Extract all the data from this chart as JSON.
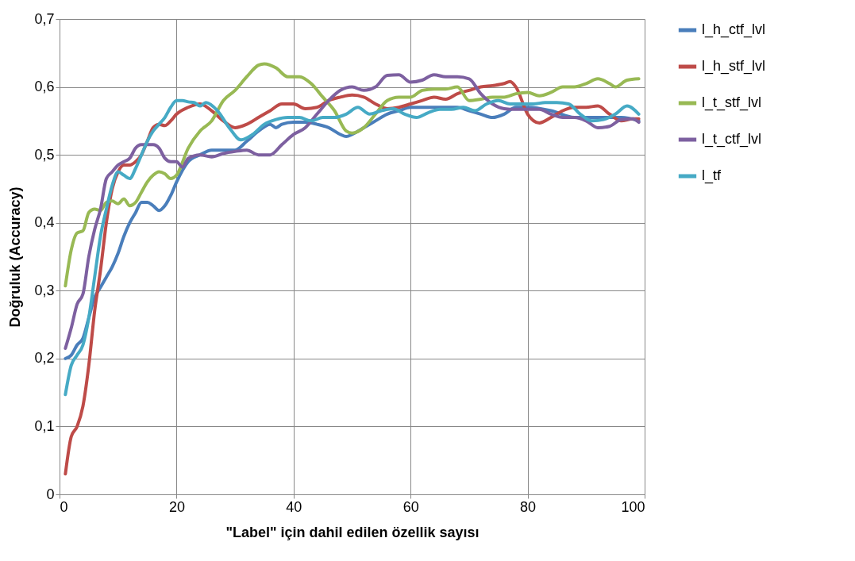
{
  "chart_data": {
    "type": "line",
    "xlabel": "\"Label\" için dahil edilen özellik sayısı",
    "ylabel": "Doğruluk (Accuracy)",
    "xlim": [
      0,
      100
    ],
    "xticks": [
      0,
      20,
      40,
      60,
      80,
      100
    ],
    "ylim": [
      0,
      0.7
    ],
    "yticks": [
      {
        "value": 0,
        "label": "0"
      },
      {
        "value": 0.1,
        "label": "0,1"
      },
      {
        "value": 0.2,
        "label": "0,2"
      },
      {
        "value": 0.3,
        "label": "0,3"
      },
      {
        "value": 0.4,
        "label": "0,4"
      },
      {
        "value": 0.5,
        "label": "0,5"
      },
      {
        "value": 0.6,
        "label": "0,6"
      },
      {
        "value": 0.7,
        "label": "0,7"
      }
    ],
    "grid": true,
    "legend": "right",
    "marker": "none",
    "line_style": "solid",
    "series": [
      {
        "name": "l_h_ctf_lvl",
        "color": "#4a7ebb",
        "x": [
          1,
          2,
          3,
          4,
          5,
          6,
          7,
          8,
          9,
          10,
          11,
          12,
          13,
          14,
          15,
          16,
          17,
          18,
          19,
          20,
          22,
          24,
          26,
          28,
          30,
          32,
          34,
          36,
          37,
          38,
          40,
          42,
          44,
          46,
          48,
          49,
          50,
          52,
          54,
          56,
          58,
          60,
          64,
          68,
          70,
          72,
          74,
          76,
          78,
          80,
          84,
          88,
          92,
          96,
          99
        ],
        "values": [
          0.2,
          0.205,
          0.22,
          0.23,
          0.26,
          0.29,
          0.305,
          0.32,
          0.335,
          0.355,
          0.38,
          0.4,
          0.415,
          0.43,
          0.43,
          0.425,
          0.418,
          0.425,
          0.44,
          0.46,
          0.49,
          0.5,
          0.507,
          0.507,
          0.507,
          0.52,
          0.535,
          0.545,
          0.54,
          0.545,
          0.548,
          0.548,
          0.545,
          0.54,
          0.53,
          0.527,
          0.53,
          0.54,
          0.55,
          0.56,
          0.565,
          0.57,
          0.57,
          0.57,
          0.565,
          0.56,
          0.555,
          0.56,
          0.57,
          0.57,
          0.565,
          0.555,
          0.555,
          0.555,
          0.55
        ]
      },
      {
        "name": "l_h_stf_lvl",
        "color": "#be4b48",
        "x": [
          1,
          2,
          3,
          4,
          5,
          6,
          7,
          8,
          9,
          10,
          11,
          12,
          13,
          14,
          15,
          16,
          17,
          18,
          19,
          20,
          22,
          24,
          26,
          28,
          30,
          32,
          34,
          36,
          38,
          40,
          42,
          44,
          46,
          48,
          50,
          52,
          54,
          56,
          58,
          60,
          62,
          64,
          66,
          68,
          70,
          72,
          74,
          76,
          77,
          78,
          80,
          82,
          84,
          86,
          88,
          90,
          92,
          94,
          96,
          98,
          99
        ],
        "values": [
          0.03,
          0.085,
          0.1,
          0.13,
          0.19,
          0.27,
          0.33,
          0.4,
          0.45,
          0.475,
          0.485,
          0.485,
          0.49,
          0.5,
          0.52,
          0.54,
          0.545,
          0.543,
          0.55,
          0.56,
          0.57,
          0.575,
          0.565,
          0.55,
          0.54,
          0.545,
          0.555,
          0.565,
          0.575,
          0.575,
          0.568,
          0.57,
          0.58,
          0.585,
          0.588,
          0.585,
          0.575,
          0.568,
          0.57,
          0.575,
          0.58,
          0.585,
          0.582,
          0.59,
          0.595,
          0.6,
          0.602,
          0.605,
          0.608,
          0.6,
          0.56,
          0.547,
          0.555,
          0.565,
          0.57,
          0.57,
          0.572,
          0.56,
          0.55,
          0.553,
          0.553
        ]
      },
      {
        "name": "l_t_stf_lvl",
        "color": "#98b954",
        "x": [
          1,
          2,
          3,
          4,
          5,
          6,
          7,
          8,
          9,
          10,
          11,
          12,
          13,
          14,
          15,
          16,
          17,
          18,
          19,
          20,
          22,
          24,
          26,
          28,
          30,
          32,
          34,
          35,
          37,
          39,
          41,
          43,
          45,
          47,
          49,
          50,
          52,
          54,
          56,
          58,
          60,
          62,
          64,
          66,
          68,
          70,
          72,
          74,
          76,
          78,
          80,
          82,
          84,
          86,
          88,
          90,
          92,
          94,
          95,
          97,
          99
        ],
        "values": [
          0.307,
          0.36,
          0.385,
          0.388,
          0.415,
          0.42,
          0.418,
          0.43,
          0.432,
          0.428,
          0.435,
          0.425,
          0.43,
          0.445,
          0.46,
          0.47,
          0.475,
          0.472,
          0.465,
          0.47,
          0.51,
          0.535,
          0.55,
          0.58,
          0.595,
          0.615,
          0.632,
          0.634,
          0.628,
          0.615,
          0.615,
          0.605,
          0.585,
          0.565,
          0.535,
          0.532,
          0.54,
          0.56,
          0.58,
          0.585,
          0.585,
          0.595,
          0.597,
          0.597,
          0.6,
          0.58,
          0.582,
          0.585,
          0.585,
          0.59,
          0.592,
          0.587,
          0.592,
          0.6,
          0.6,
          0.605,
          0.612,
          0.605,
          0.6,
          0.61,
          0.612
        ]
      },
      {
        "name": "l_t_ctf_lvl",
        "color": "#7d60a0",
        "x": [
          1,
          2,
          3,
          4,
          5,
          6,
          7,
          8,
          9,
          10,
          11,
          12,
          13,
          14,
          15,
          16,
          17,
          18,
          19,
          20,
          21,
          22,
          24,
          26,
          28,
          30,
          32,
          34,
          36,
          38,
          40,
          42,
          44,
          46,
          48,
          50,
          52,
          54,
          56,
          58,
          60,
          62,
          64,
          66,
          68,
          70,
          72,
          74,
          76,
          78,
          80,
          82,
          84,
          86,
          88,
          90,
          92,
          94,
          96,
          98,
          99
        ],
        "values": [
          0.215,
          0.245,
          0.28,
          0.295,
          0.35,
          0.39,
          0.42,
          0.465,
          0.475,
          0.485,
          0.49,
          0.495,
          0.51,
          0.515,
          0.515,
          0.515,
          0.51,
          0.495,
          0.49,
          0.49,
          0.482,
          0.495,
          0.5,
          0.497,
          0.502,
          0.505,
          0.507,
          0.5,
          0.5,
          0.515,
          0.53,
          0.54,
          0.56,
          0.58,
          0.595,
          0.6,
          0.595,
          0.6,
          0.617,
          0.618,
          0.607,
          0.61,
          0.618,
          0.615,
          0.615,
          0.612,
          0.59,
          0.575,
          0.568,
          0.567,
          0.567,
          0.567,
          0.56,
          0.555,
          0.555,
          0.55,
          0.54,
          0.542,
          0.552,
          0.553,
          0.548
        ]
      },
      {
        "name": "l_tf",
        "color": "#46aac5",
        "x": [
          1,
          2,
          3,
          4,
          5,
          6,
          7,
          8,
          9,
          10,
          11,
          12,
          13,
          14,
          15,
          16,
          17,
          18,
          19,
          20,
          21,
          22,
          23,
          24,
          25,
          27,
          29,
          31,
          33,
          35,
          37,
          39,
          41,
          43,
          45,
          47,
          49,
          51,
          53,
          55,
          57,
          59,
          61,
          63,
          65,
          67,
          69,
          71,
          73,
          75,
          77,
          79,
          81,
          83,
          85,
          87,
          89,
          91,
          93,
          95,
          97,
          99
        ],
        "values": [
          0.147,
          0.19,
          0.205,
          0.22,
          0.26,
          0.32,
          0.38,
          0.42,
          0.455,
          0.475,
          0.47,
          0.465,
          0.48,
          0.5,
          0.52,
          0.535,
          0.545,
          0.555,
          0.57,
          0.58,
          0.58,
          0.578,
          0.577,
          0.572,
          0.577,
          0.565,
          0.54,
          0.522,
          0.53,
          0.545,
          0.552,
          0.555,
          0.555,
          0.55,
          0.555,
          0.555,
          0.56,
          0.57,
          0.56,
          0.565,
          0.568,
          0.56,
          0.555,
          0.562,
          0.567,
          0.567,
          0.57,
          0.565,
          0.575,
          0.58,
          0.575,
          0.575,
          0.575,
          0.577,
          0.577,
          0.575,
          0.56,
          0.55,
          0.552,
          0.56,
          0.572,
          0.56
        ]
      }
    ]
  }
}
